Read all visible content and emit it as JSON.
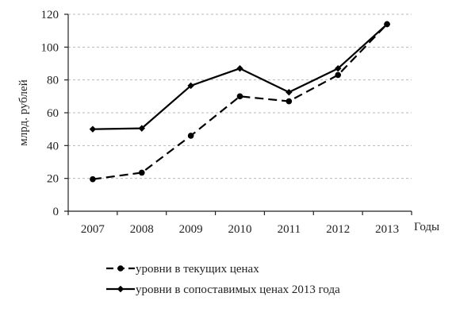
{
  "chart_data": {
    "type": "line",
    "title": "",
    "xlabel": "Годы",
    "ylabel": "млрд. рублей",
    "categories": [
      "2007",
      "2008",
      "2009",
      "2010",
      "2011",
      "2012",
      "2013"
    ],
    "ylim": [
      0,
      120
    ],
    "yticks": [
      "0",
      "20",
      "40",
      "60",
      "80",
      "100",
      "120"
    ],
    "grid": true,
    "legend_position": "bottom",
    "series": [
      {
        "name": "уровни в текущих ценах",
        "values": [
          19.5,
          23.5,
          46,
          70,
          67,
          83,
          114
        ],
        "line_style": "dashed",
        "marker": "circle",
        "color": "#000000"
      },
      {
        "name": "уровни в сопоставимых ценах 2013 года",
        "values": [
          50,
          50.5,
          76.5,
          87,
          72.5,
          87,
          114
        ],
        "line_style": "solid",
        "marker": "diamond",
        "color": "#000000"
      }
    ]
  }
}
